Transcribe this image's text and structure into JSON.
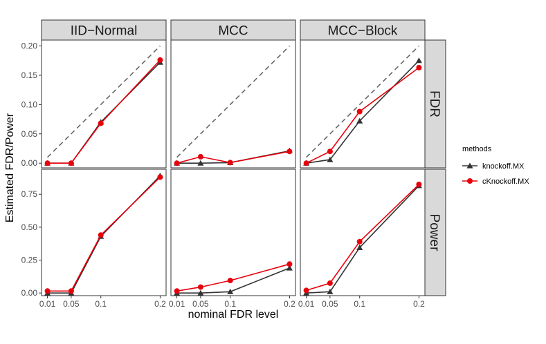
{
  "chart_data": {
    "type": "line",
    "xlabel": "nominal FDR level",
    "ylabel": "Estimated FDR/Power",
    "columns": [
      "IID−Normal",
      "MCC",
      "MCC−Block"
    ],
    "rows": [
      "FDR",
      "Power"
    ],
    "x": [
      0.01,
      0.05,
      0.1,
      0.2
    ],
    "x_tick_labels": [
      "0.01",
      "0.05",
      "0.1",
      "0.2"
    ],
    "y_axes": {
      "FDR": {
        "ylim": [
          -0.008,
          0.21
        ],
        "ticks": [
          0.0,
          0.05,
          0.1,
          0.15,
          0.2
        ],
        "tick_labels": [
          "0.00",
          "0.05",
          "0.10",
          "0.15",
          "0.20"
        ],
        "reference_line": true
      },
      "Power": {
        "ylim": [
          -0.02,
          0.94
        ],
        "ticks": [
          0.0,
          0.25,
          0.5,
          0.75
        ],
        "tick_labels": [
          "0.00",
          "0.25",
          "0.50",
          "0.75"
        ],
        "reference_line": false
      }
    },
    "legend": {
      "title": "methods",
      "position": "right"
    },
    "series_styles": [
      {
        "name": "knockoff.MX",
        "color": "#333333",
        "marker": "triangle"
      },
      {
        "name": "cKnockoff.MX",
        "color": "#e8000b",
        "marker": "circle"
      }
    ],
    "panels": [
      {
        "column": "IID−Normal",
        "row": "FDR",
        "series": [
          {
            "name": "knockoff.MX",
            "values": [
              0.0,
              0.0,
              0.07,
              0.172
            ]
          },
          {
            "name": "cKnockoff.MX",
            "values": [
              0.0,
              0.0,
              0.068,
              0.176
            ]
          }
        ]
      },
      {
        "column": "MCC",
        "row": "FDR",
        "series": [
          {
            "name": "knockoff.MX",
            "values": [
              0.0,
              0.0,
              0.001,
              0.021
            ]
          },
          {
            "name": "cKnockoff.MX",
            "values": [
              0.0,
              0.011,
              0.001,
              0.02
            ]
          }
        ]
      },
      {
        "column": "MCC−Block",
        "row": "FDR",
        "series": [
          {
            "name": "knockoff.MX",
            "values": [
              0.0,
              0.006,
              0.072,
              0.175
            ]
          },
          {
            "name": "cKnockoff.MX",
            "values": [
              0.0,
              0.02,
              0.088,
              0.163
            ]
          }
        ]
      },
      {
        "column": "IID−Normal",
        "row": "Power",
        "series": [
          {
            "name": "knockoff.MX",
            "values": [
              0.0,
              0.0,
              0.43,
              0.89
            ]
          },
          {
            "name": "cKnockoff.MX",
            "values": [
              0.015,
              0.015,
              0.44,
              0.88
            ]
          }
        ]
      },
      {
        "column": "MCC",
        "row": "Power",
        "series": [
          {
            "name": "knockoff.MX",
            "values": [
              0.0,
              0.0,
              0.01,
              0.19
            ]
          },
          {
            "name": "cKnockoff.MX",
            "values": [
              0.015,
              0.045,
              0.095,
              0.22
            ]
          }
        ]
      },
      {
        "column": "MCC−Block",
        "row": "Power",
        "series": [
          {
            "name": "knockoff.MX",
            "values": [
              0.0,
              0.01,
              0.345,
              0.815
            ]
          },
          {
            "name": "cKnockoff.MX",
            "values": [
              0.02,
              0.075,
              0.39,
              0.825
            ]
          }
        ]
      }
    ]
  }
}
